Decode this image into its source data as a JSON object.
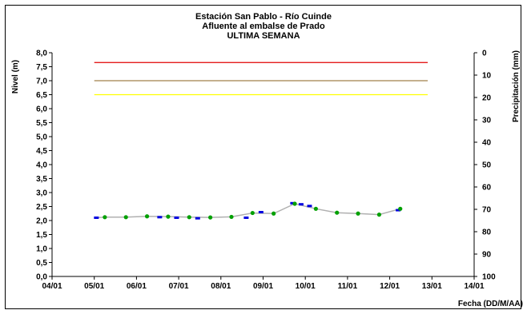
{
  "chart_data": {
    "type": "line",
    "title_lines": [
      "Estación San Pablo - Río Cuinde",
      "Afluente al embalse de Prado",
      "ULTIMA SEMANA"
    ],
    "ylabel": "Nivel (m)",
    "y2label": "Precipitación (mm)",
    "xlabel": "Fecha (DD/M/AA)",
    "ylim": [
      0,
      8
    ],
    "y_ticks": [
      "0,0",
      "0,5",
      "1,0",
      "1,5",
      "2,0",
      "2,5",
      "3,0",
      "3,5",
      "4,0",
      "4,5",
      "5,0",
      "5,5",
      "6,0",
      "6,5",
      "7,0",
      "7,5",
      "8,0"
    ],
    "y2lim": [
      0,
      100
    ],
    "y2_reversed": true,
    "y2_ticks": [
      "0",
      "10",
      "20",
      "30",
      "40",
      "50",
      "60",
      "70",
      "80",
      "90",
      "100"
    ],
    "xlim": [
      4,
      14
    ],
    "x_ticks": [
      "04/01",
      "05/01",
      "06/01",
      "07/01",
      "08/01",
      "09/01",
      "10/01",
      "11/01",
      "12/01",
      "13/01",
      "14/01"
    ],
    "grid": false,
    "thresholds": [
      {
        "value": 7.65,
        "color": "#e00000"
      },
      {
        "value": 7.0,
        "color": "#a0804a"
      },
      {
        "value": 6.5,
        "color": "#ffff00"
      }
    ],
    "series": [
      {
        "style": "line",
        "color": "#b0b0b0",
        "x": [
          5.0,
          5.25,
          5.75,
          6.25,
          6.75,
          7.25,
          7.75,
          8.25,
          8.75,
          9.25,
          9.75,
          10.25,
          10.75,
          11.25,
          11.75,
          12.25
        ],
        "values": [
          2.1,
          2.12,
          2.12,
          2.15,
          2.14,
          2.12,
          2.11,
          2.13,
          2.27,
          2.25,
          2.6,
          2.42,
          2.28,
          2.25,
          2.21,
          2.42
        ]
      },
      {
        "style": "dash-markers",
        "color": "#0000e0",
        "x": [
          5.05,
          6.55,
          6.95,
          7.45,
          8.6,
          8.95,
          9.7,
          9.9,
          10.1,
          12.2
        ],
        "values": [
          2.1,
          2.12,
          2.1,
          2.08,
          2.1,
          2.3,
          2.62,
          2.58,
          2.52,
          2.37
        ]
      },
      {
        "style": "dot-markers",
        "color": "#00a000",
        "x": [
          5.25,
          5.75,
          6.25,
          6.75,
          7.25,
          7.75,
          8.25,
          8.75,
          9.25,
          9.75,
          10.25,
          10.75,
          11.25,
          11.75,
          12.25
        ],
        "values": [
          2.12,
          2.12,
          2.15,
          2.14,
          2.12,
          2.11,
          2.13,
          2.27,
          2.25,
          2.6,
          2.42,
          2.28,
          2.25,
          2.21,
          2.42
        ]
      }
    ]
  }
}
